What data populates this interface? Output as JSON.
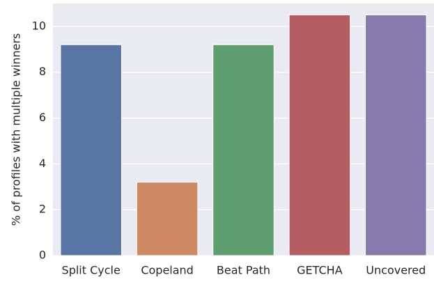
{
  "chart_data": {
    "type": "bar",
    "y_label": "% of profiles with multiple winners",
    "categories": [
      "Split Cycle",
      "Copeland",
      "Beat Path",
      "GETCHA",
      "Uncovered"
    ],
    "values": [
      9.2,
      3.2,
      9.2,
      10.5,
      10.5
    ],
    "colors": [
      "#5975a4",
      "#cc8963",
      "#5f9e6e",
      "#b55d60",
      "#857aab"
    ],
    "ylim": [
      0,
      11
    ],
    "yticks": [
      0,
      2,
      4,
      6,
      8,
      10
    ],
    "grid": true
  }
}
